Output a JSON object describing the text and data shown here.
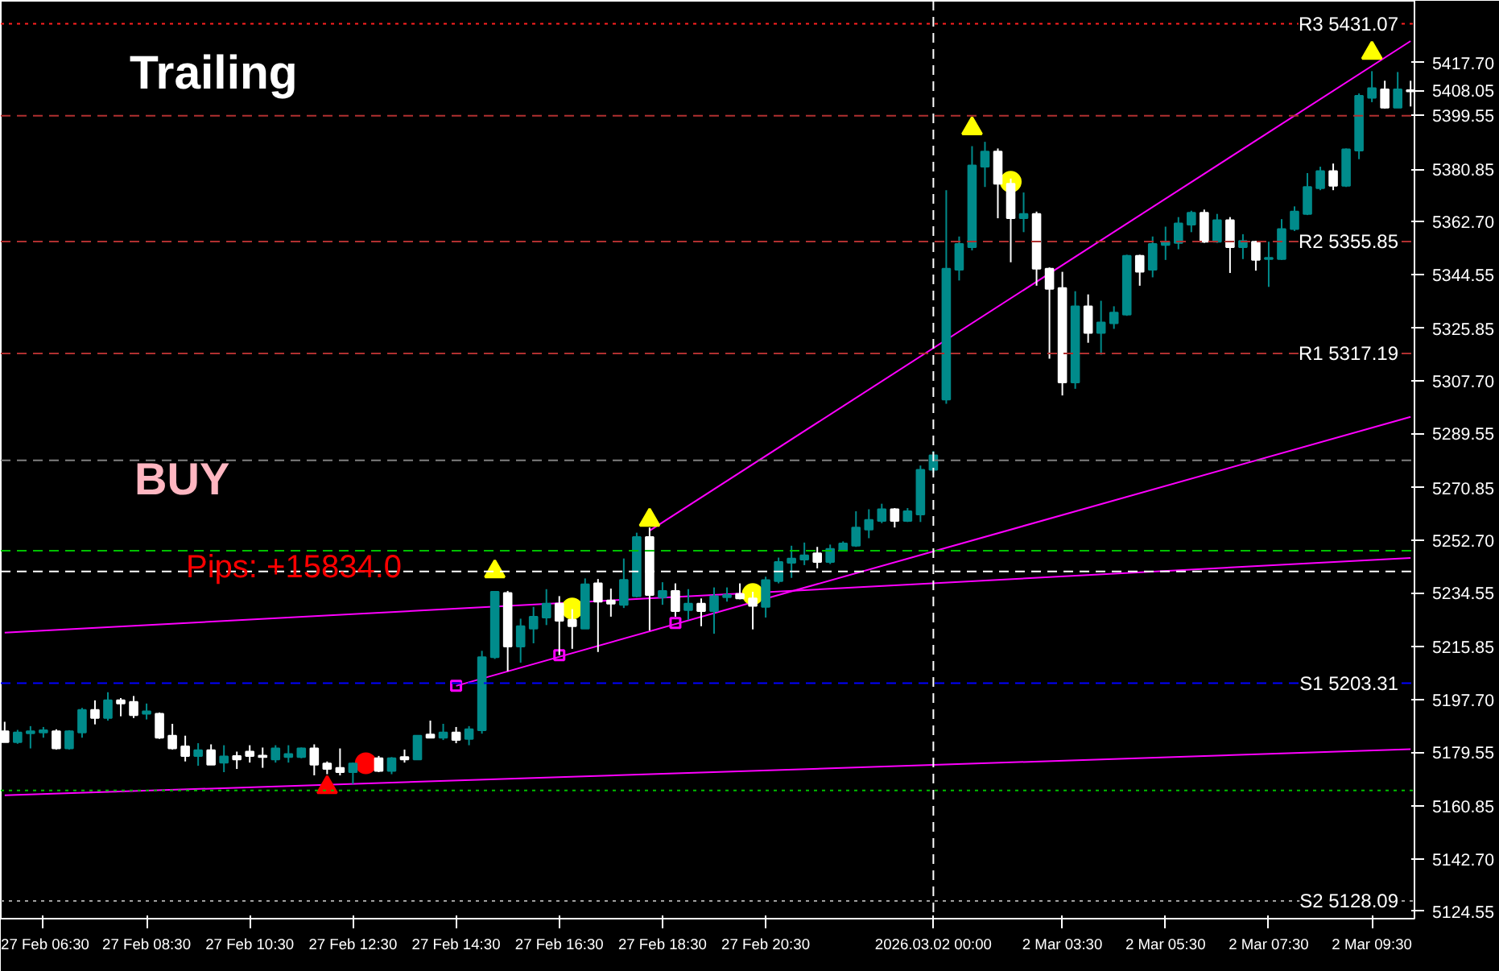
{
  "chart_data": {
    "type": "candlestick",
    "categories": [
      null,
      null,
      null,
      "27 Feb 06:30",
      null,
      null,
      null,
      null,
      null,
      null,
      null,
      "27 Feb 08:30",
      null,
      null,
      null,
      null,
      null,
      null,
      null,
      "27 Feb 10:30",
      null,
      null,
      null,
      null,
      null,
      null,
      null,
      "27 Feb 12:30",
      null,
      null,
      null,
      null,
      null,
      null,
      null,
      "27 Feb 14:30",
      null,
      null,
      null,
      null,
      null,
      null,
      null,
      "27 Feb 16:30",
      null,
      null,
      null,
      null,
      null,
      null,
      null,
      "27 Feb 18:30",
      null,
      null,
      null,
      null,
      null,
      null,
      null,
      "27 Feb 20:30",
      null,
      null,
      null,
      null,
      null,
      null,
      null,
      null,
      null,
      null,
      null,
      null,
      "2026.03.02 00:00",
      null,
      null,
      null,
      null,
      null,
      null,
      null,
      null,
      null,
      "2 Mar 03:30",
      null,
      null,
      null,
      null,
      null,
      null,
      null,
      "2 Mar 05:30",
      null,
      null,
      null,
      null,
      null,
      null,
      null,
      "2 Mar 07:30",
      null,
      null,
      null,
      null,
      null,
      null,
      null,
      "2 Mar 09:30",
      null,
      null,
      null
    ],
    "ohlc": [
      [
        5186.7,
        5190.0,
        5183.0,
        5183.0
      ],
      [
        5183.0,
        5187.2,
        5182.4,
        5186.3
      ],
      [
        5186.0,
        5188.5,
        5180.8,
        5186.7
      ],
      [
        5186.3,
        5188.2,
        5184.5,
        5187.1
      ],
      [
        5186.7,
        5187.4,
        5180.4,
        5180.8
      ],
      [
        5180.8,
        5187.1,
        5180.4,
        5186.7
      ],
      [
        5186.3,
        5194.8,
        5184.5,
        5194.1
      ],
      [
        5194.1,
        5197.4,
        5189.1,
        5191.3
      ],
      [
        5191.3,
        5200.2,
        5190.4,
        5197.4
      ],
      [
        5197.4,
        5198.2,
        5191.9,
        5196.3
      ],
      [
        5196.9,
        5198.9,
        5191.3,
        5192.3
      ],
      [
        5192.8,
        5196.3,
        5190.8,
        5193.6
      ],
      [
        5192.8,
        5193.2,
        5184.1,
        5184.5
      ],
      [
        5185.2,
        5189.3,
        5180.4,
        5180.8
      ],
      [
        5181.5,
        5185.2,
        5176.3,
        5178.2
      ],
      [
        5178.2,
        5182.6,
        5174.8,
        5180.2
      ],
      [
        5180.2,
        5182.2,
        5175.2,
        5175.2
      ],
      [
        5175.9,
        5181.9,
        5172.6,
        5178.0
      ],
      [
        5178.2,
        5179.7,
        5173.7,
        5177.0
      ],
      [
        5179.7,
        5181.9,
        5175.9,
        5178.2
      ],
      [
        5178.3,
        5181.1,
        5174.1,
        5177.8
      ],
      [
        5177.0,
        5181.9,
        5175.9,
        5180.8
      ],
      [
        5177.8,
        5181.9,
        5175.9,
        5178.9
      ],
      [
        5177.8,
        5181.1,
        5177.4,
        5180.8
      ],
      [
        5180.8,
        5182.2,
        5171.5,
        5175.2
      ],
      [
        5175.6,
        5176.3,
        5171.9,
        5173.7
      ],
      [
        5174.1,
        5180.8,
        5171.5,
        5172.6
      ],
      [
        5172.6,
        5175.9,
        5168.5,
        5175.6
      ],
      null,
      [
        5177.4,
        5178.2,
        5172.6,
        5173.0
      ],
      [
        5173.0,
        5177.8,
        5171.9,
        5177.4
      ],
      [
        5177.8,
        5180.4,
        5175.9,
        5177.0
      ],
      [
        5177.0,
        5185.2,
        5177.0,
        5185.2
      ],
      [
        5185.6,
        5190.4,
        5184.5,
        5184.5
      ],
      [
        5184.5,
        5189.3,
        5183.7,
        5186.3
      ],
      [
        5186.3,
        5188.2,
        5182.6,
        5183.7
      ],
      [
        5184.1,
        5188.5,
        5181.9,
        5187.4
      ],
      [
        5187.1,
        5214.5,
        5185.9,
        5212.3
      ],
      [
        5212.3,
        5234.9,
        5211.7,
        5234.9
      ],
      [
        5234.5,
        5235.2,
        5207.5,
        5216.0
      ],
      [
        5216.0,
        5225.6,
        5210.4,
        5223.0
      ],
      [
        5222.2,
        5229.7,
        5217.1,
        5226.3
      ],
      [
        5226.0,
        5235.8,
        5223.4,
        5230.8
      ],
      [
        5230.8,
        5233.4,
        5213.0,
        5224.9
      ],
      [
        5225.2,
        5228.9,
        5215.2,
        5223.0
      ],
      [
        5222.2,
        5239.5,
        5222.2,
        5237.5
      ],
      [
        5237.8,
        5239.3,
        5214.1,
        5231.5
      ],
      [
        5231.9,
        5236.0,
        5226.3,
        5230.8
      ],
      [
        5230.4,
        5246.4,
        5229.3,
        5239.0
      ],
      [
        5233.4,
        5255.3,
        5233.0,
        5253.8
      ],
      [
        5253.8,
        5257.1,
        5221.5,
        5233.8
      ],
      [
        5233.0,
        5238.2,
        5230.4,
        5235.2
      ],
      [
        5235.2,
        5237.8,
        5226.3,
        5228.2
      ],
      [
        5228.6,
        5235.8,
        5225.2,
        5230.8
      ],
      [
        5230.8,
        5232.6,
        5223.0,
        5228.2
      ],
      [
        5228.2,
        5236.4,
        5220.4,
        5233.4
      ],
      [
        5233.0,
        5236.4,
        5231.5,
        5233.8
      ],
      [
        5234.1,
        5237.8,
        5232.3,
        5232.6
      ],
      [
        5232.6,
        5234.9,
        5221.9,
        5230.0
      ],
      [
        5229.7,
        5240.1,
        5226.0,
        5238.9
      ],
      [
        5238.6,
        5246.7,
        5237.8,
        5245.2
      ],
      [
        5244.9,
        5250.8,
        5239.7,
        5246.4
      ],
      [
        5246.0,
        5251.9,
        5244.1,
        5247.5
      ],
      [
        5248.2,
        5250.4,
        5243.0,
        5245.2
      ],
      [
        5245.2,
        5251.2,
        5244.5,
        5249.7
      ],
      [
        5249.3,
        5252.3,
        5249.0,
        5251.6
      ],
      [
        5250.8,
        5262.7,
        5250.4,
        5257.1
      ],
      [
        5256.4,
        5263.4,
        5253.4,
        5259.7
      ],
      [
        5259.4,
        5265.3,
        5258.6,
        5263.4
      ],
      [
        5263.4,
        5263.8,
        5257.1,
        5259.4
      ],
      [
        5259.4,
        5263.8,
        5259.0,
        5262.7
      ],
      [
        5261.6,
        5278.5,
        5259.0,
        5277.0
      ],
      [
        5277.0,
        5283.5,
        5276.0,
        5282.0
      ],
      [
        5301.3,
        5373.6,
        5299.8,
        5346.5
      ],
      [
        5346.1,
        5357.6,
        5342.4,
        5355.0
      ],
      [
        5353.9,
        5388.8,
        5352.8,
        5382.1
      ],
      [
        5381.7,
        5390.3,
        5374.7,
        5386.9
      ],
      [
        5386.9,
        5388.0,
        5363.9,
        5375.8
      ],
      [
        5375.8,
        5377.6,
        5348.7,
        5363.9
      ],
      [
        5363.9,
        5372.8,
        5359.1,
        5365.4
      ],
      [
        5365.4,
        5366.2,
        5340.6,
        5346.5
      ],
      [
        5346.5,
        5346.9,
        5315.4,
        5339.5
      ],
      [
        5339.8,
        5345.4,
        5302.7,
        5307.2
      ],
      [
        5307.2,
        5338.7,
        5305.0,
        5333.5
      ],
      [
        5333.5,
        5337.6,
        5320.9,
        5324.3
      ],
      [
        5324.3,
        5335.4,
        5316.8,
        5327.9
      ],
      [
        5327.6,
        5333.5,
        5325.7,
        5331.3
      ],
      [
        5330.6,
        5351.3,
        5330.2,
        5350.9
      ],
      [
        5350.9,
        5351.3,
        5340.6,
        5345.4
      ],
      [
        5346.1,
        5357.6,
        5343.5,
        5355.0
      ],
      [
        5354.7,
        5361.0,
        5349.5,
        5355.8
      ],
      [
        5355.4,
        5364.3,
        5353.2,
        5362.1
      ],
      [
        5361.7,
        5366.5,
        5359.1,
        5365.8
      ],
      [
        5365.8,
        5366.9,
        5355.4,
        5355.8
      ],
      [
        5355.8,
        5365.4,
        5355.4,
        5363.2
      ],
      [
        5363.2,
        5364.3,
        5345.0,
        5353.9
      ],
      [
        5353.9,
        5358.4,
        5349.8,
        5356.1
      ],
      [
        5355.8,
        5356.1,
        5345.8,
        5349.5
      ],
      [
        5349.8,
        5355.8,
        5340.2,
        5350.2
      ],
      [
        5349.8,
        5363.6,
        5349.5,
        5360.2
      ],
      [
        5360.2,
        5368.0,
        5359.5,
        5366.2
      ],
      [
        5365.4,
        5379.5,
        5365.0,
        5374.7
      ],
      [
        5374.3,
        5381.7,
        5373.6,
        5380.2
      ],
      [
        5380.2,
        5382.8,
        5373.6,
        5375.1
      ],
      [
        5375.1,
        5388.0,
        5374.7,
        5387.7
      ],
      [
        5387.3,
        5407.0,
        5384.3,
        5406.2
      ],
      [
        5405.5,
        5414.7,
        5404.0,
        5408.8
      ],
      [
        5408.4,
        5411.4,
        5401.8,
        5402.1
      ],
      [
        5402.1,
        5414.4,
        5402.1,
        5408.4
      ],
      [
        5408.1,
        5411.4,
        5402.5,
        5407.7
      ]
    ],
    "colors": [
      "#ffffff",
      "#008b8b",
      "#008b8b",
      "#008b8b",
      "#ffffff",
      "#008b8b",
      "#008b8b",
      "#ffffff",
      "#008b8b",
      "#ffffff",
      "#ffffff",
      "#008b8b",
      "#ffffff",
      "#ffffff",
      "#ffffff",
      "#008b8b",
      "#ffffff",
      "#008b8b",
      "#ffffff",
      "#ffffff",
      "#ffffff",
      "#008b8b",
      "#008b8b",
      "#008b8b",
      "#ffffff",
      "#ffffff",
      "#ffffff",
      "#008b8b",
      "#008b8b",
      "#ffffff",
      "#008b8b",
      "#ffffff",
      "#008b8b",
      "#ffffff",
      "#008b8b",
      "#ffffff",
      "#008b8b",
      "#008b8b",
      "#008b8b",
      "#ffffff",
      "#008b8b",
      "#008b8b",
      "#008b8b",
      "#ffffff",
      "#ffffff",
      "#008b8b",
      "#ffffff",
      "#ffffff",
      "#008b8b",
      "#008b8b",
      "#ffffff",
      "#008b8b",
      "#ffffff",
      "#008b8b",
      "#ffffff",
      "#008b8b",
      "#008b8b",
      "#ffffff",
      "#ffffff",
      "#008b8b",
      "#008b8b",
      "#008b8b",
      "#008b8b",
      "#ffffff",
      "#008b8b",
      "#008b8b",
      "#008b8b",
      "#008b8b",
      "#008b8b",
      "#ffffff",
      "#008b8b",
      "#008b8b",
      "#008b8b",
      "#008b8b",
      "#008b8b",
      "#008b8b",
      "#008b8b",
      "#ffffff",
      "#ffffff",
      "#008b8b",
      "#ffffff",
      "#ffffff",
      "#ffffff",
      "#008b8b",
      "#ffffff",
      "#008b8b",
      "#008b8b",
      "#008b8b",
      "#ffffff",
      "#008b8b",
      "#008b8b",
      "#008b8b",
      "#008b8b",
      "#ffffff",
      "#008b8b",
      "#ffffff",
      "#008b8b",
      "#ffffff",
      "#008b8b",
      "#008b8b",
      "#008b8b",
      "#008b8b",
      "#008b8b",
      "#ffffff",
      "#008b8b",
      "#008b8b",
      "#008b8b",
      "#ffffff",
      "#008b8b",
      "#ffffff"
    ],
    "series": [
      {
        "type": "line",
        "color": "#ff00ff",
        "values": [
          5220.8,
          null,
          null,
          null,
          null,
          null,
          null,
          null,
          null,
          null,
          null,
          null,
          null,
          null,
          null,
          null,
          null,
          null,
          null,
          null,
          null,
          null,
          null,
          null,
          null,
          null,
          null,
          null,
          null,
          null,
          null,
          null,
          null,
          null,
          null,
          null,
          null,
          null,
          null,
          null,
          null,
          null,
          null,
          null,
          null,
          null,
          null,
          null,
          null,
          null,
          null,
          null,
          null,
          null,
          null,
          null,
          null,
          null,
          null,
          null,
          null,
          null,
          null,
          null,
          null,
          null,
          null,
          null,
          null,
          null,
          null,
          null,
          null,
          null,
          null,
          null,
          null,
          null,
          null,
          null,
          null,
          null,
          null,
          null,
          null,
          null,
          null,
          null,
          null,
          null,
          null,
          null,
          null,
          null,
          null,
          null,
          null,
          null,
          null,
          null,
          null,
          null,
          null,
          null,
          null,
          null,
          null,
          null,
          null,
          5246.6
        ]
      },
      {
        "type": "line",
        "color": "#ff00ff",
        "values": [
          5164.6,
          null,
          null,
          null,
          null,
          null,
          null,
          null,
          null,
          null,
          null,
          null,
          null,
          null,
          null,
          null,
          null,
          null,
          null,
          null,
          null,
          null,
          null,
          null,
          null,
          null,
          null,
          null,
          null,
          null,
          null,
          null,
          null,
          null,
          null,
          null,
          null,
          null,
          null,
          null,
          null,
          null,
          null,
          null,
          null,
          null,
          null,
          null,
          null,
          null,
          null,
          null,
          null,
          null,
          null,
          null,
          null,
          null,
          null,
          null,
          null,
          null,
          null,
          null,
          null,
          null,
          null,
          null,
          null,
          null,
          null,
          null,
          null,
          null,
          null,
          null,
          null,
          null,
          null,
          null,
          null,
          null,
          null,
          null,
          null,
          null,
          null,
          null,
          null,
          null,
          null,
          null,
          null,
          null,
          null,
          null,
          null,
          null,
          null,
          null,
          null,
          null,
          null,
          null,
          null,
          null,
          null,
          null,
          null,
          5180.5
        ]
      },
      {
        "type": "line",
        "color": "#ff00ff",
        "values": [
          null,
          null,
          null,
          null,
          null,
          null,
          null,
          null,
          null,
          null,
          null,
          null,
          null,
          null,
          null,
          null,
          null,
          null,
          null,
          null,
          null,
          null,
          null,
          null,
          null,
          null,
          null,
          null,
          null,
          null,
          null,
          null,
          null,
          null,
          null,
          5202.4,
          null,
          null,
          null,
          null,
          null,
          null,
          null,
          null,
          null,
          null,
          null,
          null,
          null,
          null,
          null,
          null,
          null,
          null,
          null,
          null,
          null,
          null,
          null,
          null,
          null,
          null,
          null,
          null,
          null,
          null,
          null,
          null,
          null,
          null,
          null,
          null,
          null,
          null,
          null,
          null,
          null,
          null,
          null,
          null,
          null,
          null,
          null,
          null,
          null,
          null,
          null,
          null,
          null,
          null,
          null,
          null,
          null,
          null,
          null,
          null,
          null,
          null,
          null,
          null,
          null,
          null,
          null,
          null,
          null,
          null,
          null,
          null,
          null,
          5295.3
        ]
      },
      {
        "type": "line",
        "color": "#ff00ff",
        "values": [
          null,
          null,
          null,
          null,
          null,
          null,
          null,
          null,
          null,
          null,
          null,
          null,
          null,
          null,
          null,
          null,
          null,
          null,
          null,
          null,
          null,
          null,
          null,
          null,
          null,
          null,
          null,
          null,
          null,
          null,
          null,
          null,
          null,
          null,
          null,
          null,
          null,
          null,
          null,
          null,
          null,
          null,
          null,
          null,
          null,
          null,
          null,
          null,
          null,
          null,
          5256.0,
          null,
          null,
          null,
          null,
          null,
          null,
          null,
          null,
          null,
          null,
          null,
          null,
          null,
          null,
          null,
          null,
          null,
          null,
          null,
          null,
          null,
          null,
          null,
          null,
          null,
          null,
          null,
          null,
          null,
          null,
          null,
          null,
          null,
          null,
          null,
          null,
          null,
          null,
          null,
          null,
          null,
          null,
          null,
          null,
          null,
          null,
          null,
          null,
          null,
          null,
          null,
          null,
          null,
          null,
          null,
          null,
          null,
          null,
          5425.1
        ]
      },
      {
        "type": "scatter",
        "marker": "square",
        "color": "#ff00ff",
        "values": [
          null,
          null,
          null,
          null,
          null,
          null,
          null,
          null,
          null,
          null,
          null,
          null,
          null,
          null,
          null,
          null,
          null,
          null,
          null,
          null,
          null,
          null,
          null,
          null,
          null,
          null,
          null,
          null,
          null,
          null,
          null,
          null,
          null,
          null,
          null,
          5202.4,
          null,
          null,
          null,
          null,
          null,
          null,
          null,
          5213.0,
          null,
          null,
          null,
          null,
          null,
          null,
          null,
          null,
          5224.1,
          null,
          null,
          null,
          null,
          null,
          null,
          null,
          null,
          null,
          null,
          null,
          null,
          null,
          null,
          null,
          null,
          null,
          null,
          null,
          null,
          null,
          null,
          null,
          null,
          null,
          null,
          null,
          null,
          null,
          null,
          null,
          null,
          null,
          null,
          null,
          null,
          null,
          null,
          null,
          null,
          null,
          null,
          null,
          null,
          null,
          null,
          null,
          null,
          null,
          null,
          null,
          null,
          null,
          null,
          null,
          null,
          null
        ]
      },
      {
        "type": "scatter",
        "marker": "triangle",
        "color": "#ffff00",
        "values": [
          null,
          null,
          null,
          null,
          null,
          null,
          null,
          null,
          null,
          null,
          null,
          null,
          null,
          null,
          null,
          null,
          null,
          null,
          null,
          null,
          null,
          null,
          null,
          null,
          null,
          null,
          null,
          null,
          null,
          null,
          null,
          null,
          null,
          null,
          null,
          null,
          null,
          null,
          5241.9,
          null,
          null,
          null,
          null,
          null,
          null,
          null,
          null,
          null,
          null,
          null,
          5259.7,
          null,
          null,
          null,
          null,
          null,
          null,
          null,
          null,
          null,
          null,
          null,
          null,
          null,
          null,
          null,
          null,
          null,
          null,
          null,
          null,
          null,
          null,
          null,
          null,
          5394.9,
          null,
          null,
          null,
          null,
          null,
          null,
          null,
          null,
          null,
          null,
          null,
          null,
          null,
          null,
          null,
          null,
          null,
          null,
          null,
          null,
          null,
          null,
          null,
          null,
          null,
          null,
          null,
          null,
          null,
          null,
          5421.0,
          null,
          null,
          null
        ]
      },
      {
        "type": "scatter",
        "marker": "triangle",
        "color": "#ff0000",
        "values": [
          null,
          null,
          null,
          null,
          null,
          null,
          null,
          null,
          null,
          null,
          null,
          null,
          null,
          null,
          null,
          null,
          null,
          null,
          null,
          null,
          null,
          null,
          null,
          null,
          null,
          5167.4,
          null,
          null,
          null,
          null,
          null,
          null,
          null,
          null,
          null,
          null,
          null,
          null,
          null,
          null,
          null,
          null,
          null,
          null,
          null,
          null,
          null,
          null,
          null,
          null,
          null,
          null,
          null,
          null,
          null,
          null,
          null,
          null,
          null,
          null,
          null,
          null,
          null,
          null,
          null,
          null,
          null,
          null,
          null,
          null,
          null,
          null,
          null,
          null,
          null,
          null,
          null,
          null,
          null,
          null,
          null,
          null,
          null,
          null,
          null,
          null,
          null,
          null,
          null,
          null,
          null,
          null,
          null,
          null,
          null,
          null,
          null,
          null,
          null,
          null,
          null,
          null,
          null,
          null,
          null,
          null,
          null,
          null,
          null,
          null
        ]
      },
      {
        "type": "scatter",
        "marker": "circle",
        "color": "#ffff00",
        "values": [
          null,
          null,
          null,
          null,
          null,
          null,
          null,
          null,
          null,
          null,
          null,
          null,
          null,
          null,
          null,
          null,
          null,
          null,
          null,
          null,
          null,
          null,
          null,
          null,
          null,
          null,
          null,
          null,
          null,
          null,
          null,
          null,
          null,
          null,
          null,
          null,
          null,
          null,
          null,
          null,
          null,
          null,
          null,
          null,
          5229.1,
          null,
          null,
          null,
          null,
          null,
          null,
          null,
          null,
          null,
          null,
          null,
          null,
          null,
          5234.1,
          null,
          null,
          null,
          null,
          null,
          null,
          null,
          null,
          null,
          null,
          null,
          null,
          null,
          null,
          null,
          null,
          null,
          null,
          null,
          5376.5,
          null,
          null,
          null,
          null,
          null,
          null,
          null,
          null,
          null,
          null,
          null,
          null,
          null,
          null,
          null,
          null,
          null,
          null,
          null,
          null,
          null,
          null,
          null,
          null,
          null,
          null,
          null,
          null,
          null,
          null,
          null
        ]
      },
      {
        "type": "scatter",
        "marker": "circle",
        "color": "#ff0000",
        "values": [
          null,
          null,
          null,
          null,
          null,
          null,
          null,
          null,
          null,
          null,
          null,
          null,
          null,
          null,
          null,
          null,
          null,
          null,
          null,
          null,
          null,
          null,
          null,
          null,
          null,
          null,
          null,
          null,
          5175.7,
          null,
          null,
          null,
          null,
          null,
          null,
          null,
          null,
          null,
          null,
          null,
          null,
          null,
          null,
          null,
          null,
          null,
          null,
          null,
          null,
          null,
          null,
          null,
          null,
          null,
          null,
          null,
          null,
          null,
          null,
          null,
          null,
          null,
          null,
          null,
          null,
          null,
          null,
          null,
          null,
          null,
          null,
          null,
          null,
          null,
          null,
          null,
          null,
          null,
          null,
          null,
          null,
          null,
          null,
          null,
          null,
          null,
          null,
          null,
          null,
          null,
          null,
          null,
          null,
          null,
          null,
          null,
          null,
          null,
          null,
          null,
          null,
          null,
          null,
          null,
          null,
          null,
          null,
          null,
          null,
          null
        ]
      }
    ],
    "ylim": [
      5122,
      5439
    ],
    "yticks": [
      {
        "value": 5124.55,
        "label": "5124.55"
      },
      {
        "value": 5142.7,
        "label": "5142.70"
      },
      {
        "value": 5160.85,
        "label": "5160.85"
      },
      {
        "value": 5179.55,
        "label": "5179.55"
      },
      {
        "value": 5197.7,
        "label": "5197.70"
      },
      {
        "value": 5215.85,
        "label": "5215.85"
      },
      {
        "value": 5234.55,
        "label": "5234.55"
      },
      {
        "value": 5252.7,
        "label": "5252.70"
      },
      {
        "value": 5270.85,
        "label": "5270.85"
      },
      {
        "value": 5289.55,
        "label": "5289.55"
      },
      {
        "value": 5307.7,
        "label": "5307.70"
      },
      {
        "value": 5325.85,
        "label": "5325.85"
      },
      {
        "value": 5344.55,
        "label": "5344.55"
      },
      {
        "value": 5362.7,
        "label": "5362.70"
      },
      {
        "value": 5380.85,
        "label": "5380.85"
      },
      {
        "value": 5399.55,
        "label": "5399.55"
      },
      {
        "value": 5408.05,
        "label": "5408.05"
      },
      {
        "value": 5417.7,
        "label": "5417.70"
      }
    ],
    "ref_lines": [
      {
        "axis": "y",
        "value": 5431.07,
        "label": "R3 5431.07",
        "color": "#ff2020",
        "line_style": "dotted"
      },
      {
        "axis": "y",
        "value": 5399.3,
        "color": "#b03030",
        "line_style": "dashed"
      },
      {
        "axis": "y",
        "value": 5355.85,
        "label": "R2 5355.85",
        "color": "#b03030",
        "line_style": "dashed"
      },
      {
        "axis": "y",
        "value": 5317.19,
        "label": "R1 5317.19",
        "color": "#b03030",
        "line_style": "dashed"
      },
      {
        "axis": "y",
        "value": 5280.3,
        "color": "#808080",
        "line_style": "dashed"
      },
      {
        "axis": "y",
        "value": 5249.1,
        "color": "#00c000",
        "line_style": "dashed"
      },
      {
        "axis": "y",
        "value": 5241.9,
        "color": "#ffffff",
        "line_style": "dashed"
      },
      {
        "axis": "y",
        "value": 5203.31,
        "label": "S1 5203.31",
        "color": "#0000ff",
        "line_style": "dashed"
      },
      {
        "axis": "y",
        "value": 5166.3,
        "color": "#00c000",
        "line_style": "dotted"
      },
      {
        "axis": "y",
        "value": 5128.09,
        "label": "S2 5128.09",
        "color": "#a0a0a0",
        "line_style": "dotted"
      },
      {
        "axis": "x",
        "value": "2026.03.02 00:00",
        "color": "#ffffff",
        "line_style": "dashed"
      }
    ],
    "annotations": [
      "Trailing",
      "BUY",
      "Pips: +15834.0"
    ]
  }
}
